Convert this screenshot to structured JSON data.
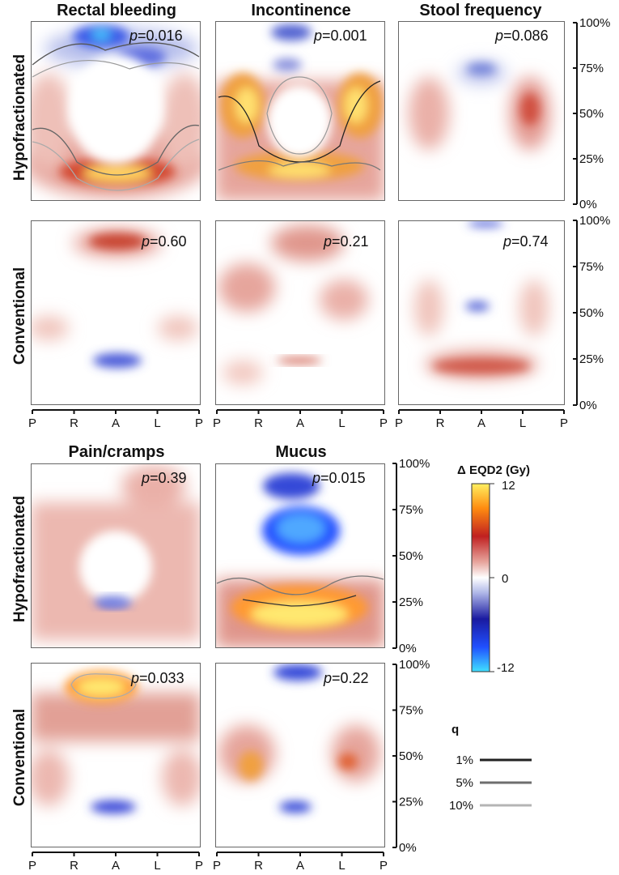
{
  "chart_data": {
    "type": "heatmap",
    "description_axis_x": "P R A L P",
    "x_ticks": [
      "P",
      "R",
      "A",
      "L",
      "P"
    ],
    "y_ticks": [
      "0%",
      "25%",
      "50%",
      "75%",
      "100%"
    ],
    "colorbar": {
      "title": "Δ EQD2 (Gy)",
      "max_label": "12",
      "mid_label": "0",
      "min_label": "-12",
      "range": [
        -12,
        12
      ],
      "colors": [
        "#40e0ff",
        "#2050ff",
        "#1a1aa0",
        "#b0b8e8",
        "#ffffff",
        "#e8a8a0",
        "#c02020",
        "#ff8c10",
        "#fff060"
      ]
    },
    "q_legend": {
      "title": "q",
      "entries": [
        {
          "label": "1%",
          "color": "#222222"
        },
        {
          "label": "5%",
          "color": "#6e6e6e"
        },
        {
          "label": "10%",
          "color": "#b4b4b4"
        }
      ]
    },
    "groups": [
      {
        "columns": [
          "Rectal bleeding",
          "Incontinence",
          "Stool frequency"
        ],
        "rows": [
          {
            "label": "Hypofractionated",
            "p_values": [
              "0.016",
              "0.001",
              "0.086"
            ]
          },
          {
            "label": "Conventional",
            "p_values": [
              "0.60",
              "0.21",
              "0.74"
            ]
          }
        ]
      },
      {
        "columns": [
          "Pain/cramps",
          "Mucus"
        ],
        "rows": [
          {
            "label": "Hypofractionated",
            "p_values": [
              "0.39",
              "0.015"
            ]
          },
          {
            "label": "Conventional",
            "p_values": [
              "0.033",
              "0.22"
            ]
          }
        ]
      }
    ]
  }
}
